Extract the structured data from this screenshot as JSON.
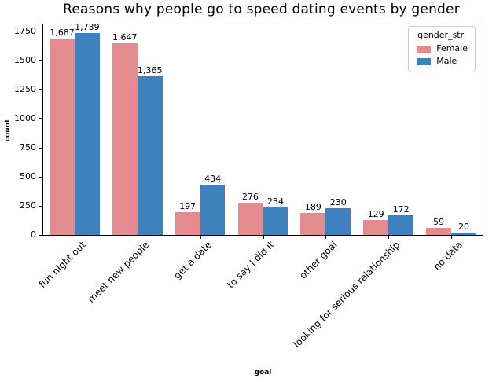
{
  "title": "Reasons why people go to speed dating events by gender",
  "chart_data": {
    "type": "bar",
    "title": "Reasons why people go to speed dating events by gender",
    "xlabel": "goal",
    "ylabel": "count",
    "categories": [
      "fun night out",
      "meet new people",
      "get a date",
      "to say I did it",
      "other goal",
      "looking for serious relationship",
      "no data"
    ],
    "series": [
      {
        "name": "Female",
        "color": "#e48b90",
        "values": [
          1687,
          1647,
          197,
          276,
          189,
          129,
          59
        ],
        "labels": [
          "1,687",
          "1,647",
          "197",
          "276",
          "189",
          "129",
          "59"
        ]
      },
      {
        "name": "Male",
        "color": "#3d82be",
        "values": [
          1739,
          1365,
          434,
          234,
          230,
          172,
          20
        ],
        "labels": [
          "1,739",
          "1,365",
          "434",
          "234",
          "230",
          "172",
          "20"
        ]
      }
    ],
    "ylim": [
      0,
      1810
    ],
    "yticks": [
      0,
      250,
      500,
      750,
      1000,
      1250,
      1500,
      1750
    ],
    "grid": false,
    "legend": {
      "title": "gender_str",
      "position": "upper right"
    }
  }
}
